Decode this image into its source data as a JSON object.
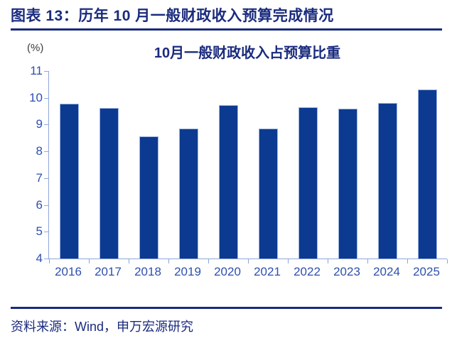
{
  "header": {
    "title": "图表 13：历年 10 月一般财政收入预算完成情况"
  },
  "chart_data": {
    "type": "bar",
    "title": "10月一般财政收入占预算比重",
    "unit_label": "(%)",
    "xlabel": "",
    "ylabel": "%",
    "categories": [
      "2016",
      "2017",
      "2018",
      "2019",
      "2020",
      "2021",
      "2022",
      "2023",
      "2024",
      "2025"
    ],
    "values": [
      9.78,
      9.63,
      8.57,
      8.86,
      9.74,
      8.86,
      9.66,
      9.6,
      9.81,
      10.3
    ],
    "ylim": [
      4,
      11
    ],
    "yticks": [
      4,
      5,
      6,
      7,
      8,
      9,
      10,
      11
    ],
    "grid": false,
    "legend": false,
    "bar_color": "#0c3a91",
    "axis_line_color": "#8fa6d9",
    "tick_label_color": "#2e4fae"
  },
  "footer": {
    "source": "资料来源：Wind，申万宏源研究"
  },
  "colors": {
    "accent_navy": "#1a2b7e",
    "unit_label_color": "#3d3d3d",
    "background": "#ffffff"
  }
}
